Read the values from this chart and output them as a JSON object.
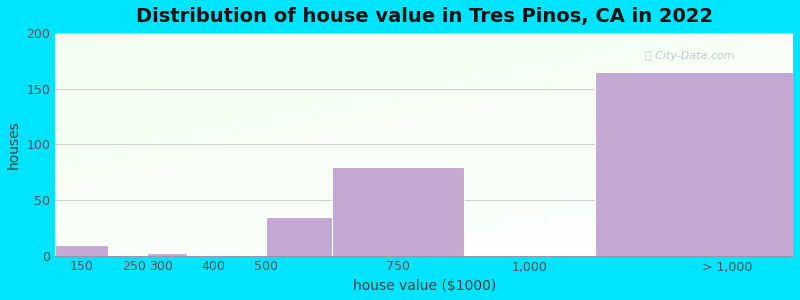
{
  "title": "Distribution of house value in Tres Pinos, CA in 2022",
  "xlabel": "house value ($1000)",
  "ylabel": "houses",
  "bar_color": "#c4a8d4",
  "bar_edgecolor": "#ffffff",
  "background_outer": "#00e5ff",
  "ylim": [
    0,
    200
  ],
  "yticks": [
    0,
    50,
    100,
    150,
    200
  ],
  "grid_color": "#cccccc",
  "title_fontsize": 14,
  "axis_label_fontsize": 10,
  "tick_fontsize": 9,
  "bar_left_edges": [
    100,
    200,
    275,
    350,
    500,
    625,
    875,
    1125
  ],
  "bar_widths": [
    100,
    75,
    75,
    150,
    125,
    250,
    250,
    375
  ],
  "bar_heights": [
    10,
    0,
    2,
    0,
    35,
    80,
    0,
    165
  ],
  "xtick_positions": [
    150,
    250,
    300,
    400,
    500,
    750,
    1000,
    1375
  ],
  "xtick_labels": [
    "150",
    "250",
    "300",
    "400",
    "500",
    "750",
    "1,000",
    "> 1,000"
  ],
  "xmin": 100,
  "xmax": 1500
}
